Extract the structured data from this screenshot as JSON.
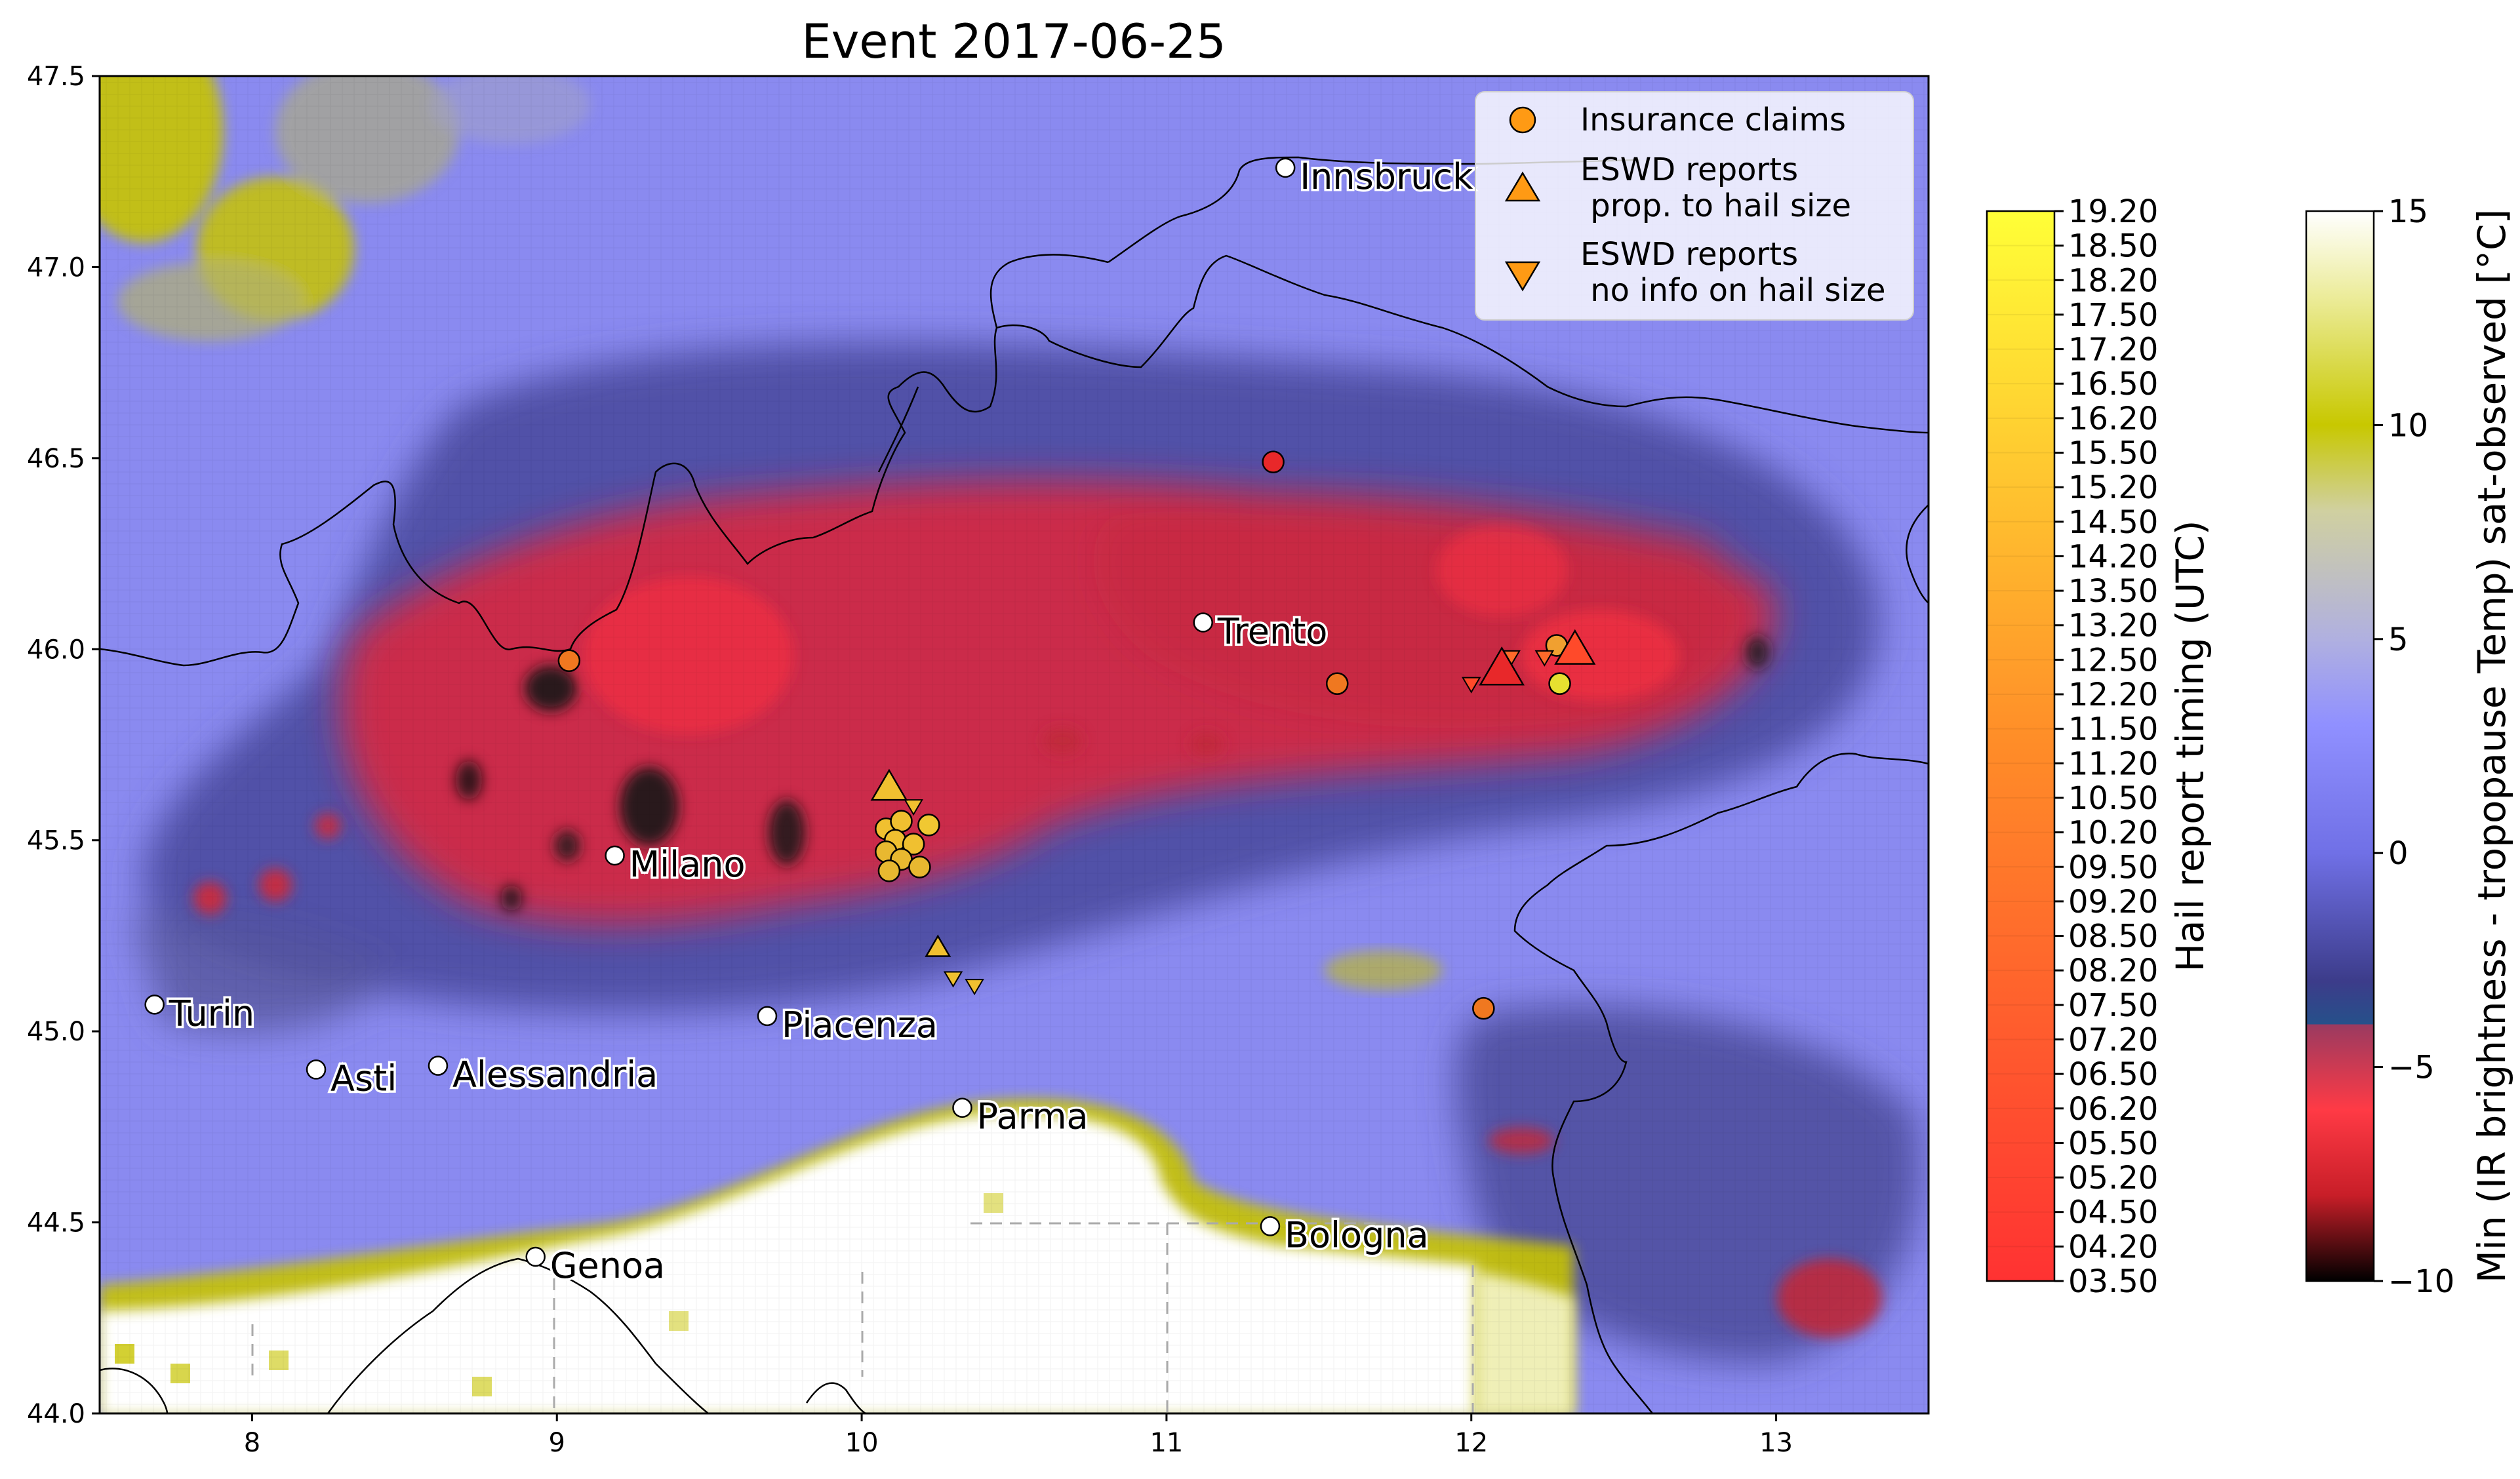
{
  "title": "Event 2017-06-25",
  "axes": {
    "x": {
      "min": 7.5,
      "max": 13.5,
      "ticks": [
        8,
        9,
        10,
        11,
        12,
        13
      ]
    },
    "y": {
      "min": 44.0,
      "max": 47.5,
      "ticks": [
        "44.0",
        "44.5",
        "45.0",
        "45.5",
        "46.0",
        "46.5",
        "47.0",
        "47.5"
      ]
    }
  },
  "legend": {
    "placement": "top-right",
    "items": [
      {
        "marker": "circle",
        "label_lines": [
          "Insurance claims"
        ]
      },
      {
        "marker": "triangle-up",
        "label_lines": [
          "ESWD reports",
          " prop. to hail size"
        ]
      },
      {
        "marker": "triangle-down",
        "label_lines": [
          "ESWD reports",
          " no info on hail size"
        ]
      }
    ]
  },
  "colorbar_timing": {
    "label": "Hail report timing (UTC)",
    "ticks": [
      "19.20",
      "18.50",
      "18.20",
      "17.50",
      "17.20",
      "16.50",
      "16.20",
      "15.50",
      "15.20",
      "14.50",
      "14.20",
      "13.50",
      "13.20",
      "12.50",
      "12.20",
      "11.50",
      "11.20",
      "10.50",
      "10.20",
      "09.50",
      "09.20",
      "08.50",
      "08.20",
      "07.50",
      "07.20",
      "06.50",
      "06.20",
      "05.50",
      "05.20",
      "04.50",
      "04.20",
      "03.50"
    ],
    "colors": {
      "low": "#ff3232",
      "mid": "#ff8c28",
      "high": "#ffff37"
    }
  },
  "colorbar_temp": {
    "label": "Min (IR brightness - tropopause Temp) sat-observed [°C]",
    "range": [
      -10,
      15
    ],
    "ticks": [
      "15",
      "10",
      "5",
      "0",
      "−5",
      "−10"
    ],
    "tick_values": [
      15,
      10,
      5,
      0,
      -5,
      -10
    ]
  },
  "cities": [
    {
      "name": "Innsbruck",
      "lon": 11.39,
      "lat": 47.26
    },
    {
      "name": "Trento",
      "lon": 11.12,
      "lat": 46.07
    },
    {
      "name": "Milano",
      "lon": 9.19,
      "lat": 45.46
    },
    {
      "name": "Piacenza",
      "lon": 9.69,
      "lat": 45.04
    },
    {
      "name": "Turin",
      "lon": 7.68,
      "lat": 45.07
    },
    {
      "name": "Asti",
      "lon": 8.21,
      "lat": 44.9
    },
    {
      "name": "Alessandria",
      "lon": 8.61,
      "lat": 44.91
    },
    {
      "name": "Parma",
      "lon": 10.33,
      "lat": 44.8
    },
    {
      "name": "Bologna",
      "lon": 11.34,
      "lat": 44.49
    },
    {
      "name": "Genoa",
      "lon": 8.93,
      "lat": 44.41
    }
  ],
  "reports": {
    "insurance_claims": [
      {
        "lon": 11.35,
        "lat": 46.49,
        "color": "#e8282a"
      },
      {
        "lon": 9.04,
        "lat": 45.97,
        "color": "#f07820"
      },
      {
        "lon": 11.56,
        "lat": 45.91,
        "color": "#f07820"
      },
      {
        "lon": 12.28,
        "lat": 46.01,
        "color": "#f0a030"
      },
      {
        "lon": 12.29,
        "lat": 45.91,
        "color": "#e6e030"
      },
      {
        "lon": 12.04,
        "lat": 45.06,
        "color": "#f07820"
      },
      {
        "lon": 10.08,
        "lat": 45.53,
        "color": "#f0c030"
      },
      {
        "lon": 10.13,
        "lat": 45.55,
        "color": "#f0c030"
      },
      {
        "lon": 10.22,
        "lat": 45.54,
        "color": "#f0c832"
      },
      {
        "lon": 10.11,
        "lat": 45.5,
        "color": "#f0c030"
      },
      {
        "lon": 10.17,
        "lat": 45.49,
        "color": "#f0c030"
      },
      {
        "lon": 10.08,
        "lat": 45.47,
        "color": "#e8b830"
      },
      {
        "lon": 10.13,
        "lat": 45.45,
        "color": "#e8b830"
      },
      {
        "lon": 10.19,
        "lat": 45.43,
        "color": "#e8b830"
      },
      {
        "lon": 10.09,
        "lat": 45.42,
        "color": "#e8b830"
      }
    ],
    "eswd_sized": [
      {
        "lon": 12.1,
        "lat": 45.95,
        "size": 62,
        "color": "#e8282a"
      },
      {
        "lon": 12.34,
        "lat": 46.0,
        "size": 56,
        "color": "#ff4a2a"
      },
      {
        "lon": 10.09,
        "lat": 45.64,
        "size": 50,
        "color": "#f0c030"
      },
      {
        "lon": 10.25,
        "lat": 45.22,
        "size": 34,
        "color": "#f0c030"
      }
    ],
    "eswd_unsized": [
      {
        "lon": 12.0,
        "lat": 45.91,
        "color": "#ff4a2a"
      },
      {
        "lon": 12.13,
        "lat": 45.98,
        "color": "#ff6a2a"
      },
      {
        "lon": 12.24,
        "lat": 45.98,
        "color": "#ff6a2a"
      },
      {
        "lon": 10.17,
        "lat": 45.59,
        "color": "#f0c030"
      },
      {
        "lon": 10.3,
        "lat": 45.14,
        "color": "#f0c030"
      },
      {
        "lon": 10.37,
        "lat": 45.12,
        "color": "#f0c030"
      }
    ]
  }
}
